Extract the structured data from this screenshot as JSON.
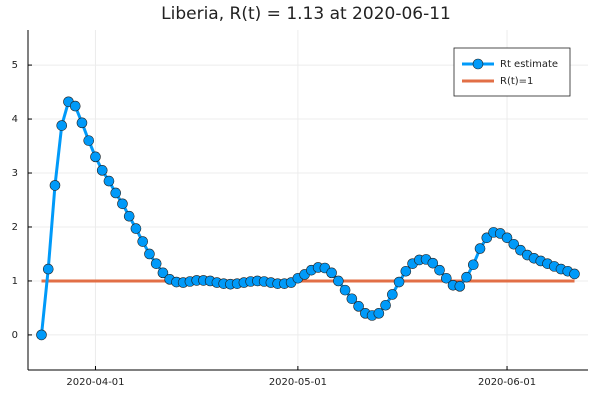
{
  "chart_data": {
    "type": "line",
    "title": "Liberia, R(t) = 1.13 at 2020-06-11",
    "x": [
      "2020-03-24",
      "2020-03-25",
      "2020-03-26",
      "2020-03-27",
      "2020-03-28",
      "2020-03-29",
      "2020-03-30",
      "2020-03-31",
      "2020-04-01",
      "2020-04-02",
      "2020-04-03",
      "2020-04-04",
      "2020-04-05",
      "2020-04-06",
      "2020-04-07",
      "2020-04-08",
      "2020-04-09",
      "2020-04-10",
      "2020-04-11",
      "2020-04-12",
      "2020-04-13",
      "2020-04-14",
      "2020-04-15",
      "2020-04-16",
      "2020-04-17",
      "2020-04-18",
      "2020-04-19",
      "2020-04-20",
      "2020-04-21",
      "2020-04-22",
      "2020-04-23",
      "2020-04-24",
      "2020-04-25",
      "2020-04-26",
      "2020-04-27",
      "2020-04-28",
      "2020-04-29",
      "2020-04-30",
      "2020-05-01",
      "2020-05-02",
      "2020-05-03",
      "2020-05-04",
      "2020-05-05",
      "2020-05-06",
      "2020-05-07",
      "2020-05-08",
      "2020-05-09",
      "2020-05-10",
      "2020-05-11",
      "2020-05-12",
      "2020-05-13",
      "2020-05-14",
      "2020-05-15",
      "2020-05-16",
      "2020-05-17",
      "2020-05-18",
      "2020-05-19",
      "2020-05-20",
      "2020-05-21",
      "2020-05-22",
      "2020-05-23",
      "2020-05-24",
      "2020-05-25",
      "2020-05-26",
      "2020-05-27",
      "2020-05-28",
      "2020-05-29",
      "2020-05-30",
      "2020-05-31",
      "2020-06-01",
      "2020-06-02",
      "2020-06-03",
      "2020-06-04",
      "2020-06-05",
      "2020-06-06",
      "2020-06-07",
      "2020-06-08",
      "2020-06-09",
      "2020-06-10",
      "2020-06-11"
    ],
    "series": [
      {
        "name": "Rt estimate",
        "color": "#009af9",
        "markers": true,
        "values": [
          0,
          1.22,
          2.77,
          3.88,
          4.32,
          4.24,
          3.93,
          3.6,
          3.3,
          3.05,
          2.85,
          2.63,
          2.43,
          2.2,
          1.97,
          1.73,
          1.5,
          1.32,
          1.15,
          1.03,
          0.98,
          0.97,
          0.99,
          1.01,
          1.01,
          1.0,
          0.97,
          0.95,
          0.94,
          0.95,
          0.97,
          0.99,
          1.0,
          0.99,
          0.97,
          0.95,
          0.95,
          0.97,
          1.05,
          1.12,
          1.2,
          1.25,
          1.24,
          1.15,
          1.0,
          0.83,
          0.67,
          0.53,
          0.4,
          0.36,
          0.4,
          0.55,
          0.75,
          0.98,
          1.18,
          1.32,
          1.39,
          1.4,
          1.33,
          1.2,
          1.05,
          0.92,
          0.9,
          1.07,
          1.3,
          1.6,
          1.8,
          1.9,
          1.88,
          1.8,
          1.68,
          1.57,
          1.48,
          1.42,
          1.37,
          1.32,
          1.27,
          1.22,
          1.18,
          1.13
        ]
      },
      {
        "name": "R(t)=1",
        "color": "#e26f46",
        "markers": false,
        "values": [
          1,
          1,
          1,
          1,
          1,
          1,
          1,
          1,
          1,
          1,
          1,
          1,
          1,
          1,
          1,
          1,
          1,
          1,
          1,
          1,
          1,
          1,
          1,
          1,
          1,
          1,
          1,
          1,
          1,
          1,
          1,
          1,
          1,
          1,
          1,
          1,
          1,
          1,
          1,
          1,
          1,
          1,
          1,
          1,
          1,
          1,
          1,
          1,
          1,
          1,
          1,
          1,
          1,
          1,
          1,
          1,
          1,
          1,
          1,
          1,
          1,
          1,
          1,
          1,
          1,
          1,
          1,
          1,
          1,
          1,
          1,
          1,
          1,
          1,
          1,
          1,
          1,
          1,
          1,
          1
        ]
      }
    ],
    "xlim": [
      "2020-03-22",
      "2020-06-13"
    ],
    "xticks": [
      "2020-04-01",
      "2020-05-01",
      "2020-06-01"
    ],
    "ylim": [
      -0.65,
      5.65
    ],
    "yticks": [
      0,
      1,
      2,
      3,
      4,
      5
    ],
    "grid": true,
    "legend": "top-right"
  }
}
